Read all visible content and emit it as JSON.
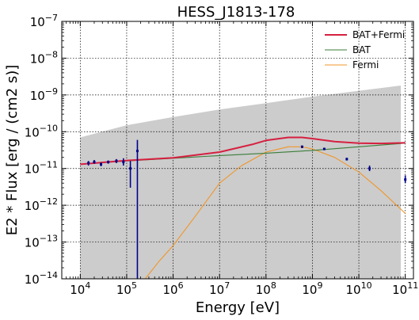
{
  "chart_data": {
    "type": "line",
    "title": "HESS_J1813-178",
    "xlabel": "Energy [eV]",
    "ylabel": "E2 * Flux [erg / (cm2 s)]",
    "xscale": "log",
    "yscale": "log",
    "xlim": [
      4000.0,
      150000000000.0
    ],
    "ylim": [
      1e-14,
      1e-07
    ],
    "grid": true,
    "legend_position": "top-right",
    "x_ticks": [
      {
        "base": "10",
        "exp": "4",
        "value": 10000.0
      },
      {
        "base": "10",
        "exp": "5",
        "value": 100000.0
      },
      {
        "base": "10",
        "exp": "6",
        "value": 1000000.0
      },
      {
        "base": "10",
        "exp": "7",
        "value": 10000000.0
      },
      {
        "base": "10",
        "exp": "8",
        "value": 100000000.0
      },
      {
        "base": "10",
        "exp": "9",
        "value": 1000000000.0
      },
      {
        "base": "10",
        "exp": "10",
        "value": 10000000000.0
      },
      {
        "base": "10",
        "exp": "11",
        "value": 100000000000.0
      }
    ],
    "y_ticks": [
      {
        "base": "10",
        "exp": "−14",
        "value": 1e-14
      },
      {
        "base": "10",
        "exp": "−13",
        "value": 1e-13
      },
      {
        "base": "10",
        "exp": "−12",
        "value": 1e-12
      },
      {
        "base": "10",
        "exp": "−11",
        "value": 1e-11
      },
      {
        "base": "10",
        "exp": "−10",
        "value": 1e-10
      },
      {
        "base": "10",
        "exp": "−9",
        "value": 1e-09
      },
      {
        "base": "10",
        "exp": "−8",
        "value": 1e-08
      },
      {
        "base": "10",
        "exp": "−7",
        "value": 1e-07
      }
    ],
    "band": {
      "color": "#cccccc",
      "x": [
        10000.0,
        100000.0,
        1000000.0,
        10000000.0,
        100000000.0,
        1000000000.0,
        10000000000.0,
        80000000000.0
      ],
      "upper": [
        7e-11,
        1.5e-10,
        2.5e-10,
        4e-10,
        6e-10,
        9e-10,
        1.3e-09,
        1.8e-09
      ],
      "lower": [
        1e-14,
        1e-14,
        1e-14,
        1e-14,
        1e-14,
        1e-14,
        1e-14,
        1e-14
      ]
    },
    "series": [
      {
        "name": "BAT+Fermi",
        "color": "#d62040",
        "x": [
          10000.0,
          100000.0,
          1000000.0,
          10000000.0,
          50000000.0,
          100000000.0,
          300000000.0,
          600000000.0,
          1000000000.0,
          3000000000.0,
          10000000000.0,
          30000000000.0,
          100000000000.0
        ],
        "y": [
          1.3e-11,
          1.65e-11,
          1.95e-11,
          2.8e-11,
          4.5e-11,
          5.8e-11,
          7e-11,
          7e-11,
          6.5e-11,
          5.4e-11,
          4.9e-11,
          4.8e-11,
          5e-11
        ]
      },
      {
        "name": "BAT",
        "color": "#3a7d3a",
        "x": [
          10000.0,
          100000.0,
          1000000.0,
          10000000.0,
          100000000.0,
          1000000000.0,
          10000000000.0,
          100000000000.0
        ],
        "y": [
          1.3e-11,
          1.6e-11,
          1.9e-11,
          2.25e-11,
          2.6e-11,
          3.1e-11,
          3.9e-11,
          4.9e-11
        ]
      },
      {
        "name": "Fermi",
        "color": "#f0962a",
        "x": [
          250000.0,
          500000.0,
          1000000.0,
          3000000.0,
          10000000.0,
          30000000.0,
          100000000.0,
          300000000.0,
          600000000.0,
          1000000000.0,
          3000000000.0,
          10000000000.0,
          30000000000.0,
          100000000000.0
        ],
        "y": [
          1e-14,
          3e-14,
          8e-14,
          5e-13,
          4e-12,
          1.2e-11,
          2.8e-11,
          3.9e-11,
          3.9e-11,
          3.4e-11,
          2e-11,
          8e-12,
          2.5e-12,
          6e-13
        ]
      }
    ],
    "data_points": {
      "color": "#00008b",
      "points": [
        {
          "x": 15000.0,
          "y": 1.4e-11,
          "ylo": 1.2e-11,
          "yhi": 1.6e-11
        },
        {
          "x": 20000.0,
          "y": 1.5e-11,
          "ylo": 1.35e-11,
          "yhi": 1.7e-11
        },
        {
          "x": 28000.0,
          "y": 1.3e-11,
          "ylo": 1.15e-11,
          "yhi": 1.45e-11
        },
        {
          "x": 40000.0,
          "y": 1.5e-11,
          "ylo": 1.35e-11,
          "yhi": 1.65e-11
        },
        {
          "x": 60000.0,
          "y": 1.6e-11,
          "ylo": 1.4e-11,
          "yhi": 1.8e-11
        },
        {
          "x": 85000.0,
          "y": 1.5e-11,
          "ylo": 1.2e-11,
          "yhi": 1.9e-11
        },
        {
          "x": 120000.0,
          "y": 1e-11,
          "ylo": 3e-12,
          "yhi": 1.6e-11
        },
        {
          "x": 170000.0,
          "y": 3e-11,
          "ylo": 1e-14,
          "yhi": 6e-11
        },
        {
          "x": 600000000.0,
          "y": 3.9e-11,
          "ylo": 3.6e-11,
          "yhi": 4.2e-11
        },
        {
          "x": 1800000000.0,
          "y": 3.4e-11,
          "ylo": 3.2e-11,
          "yhi": 3.6e-11
        },
        {
          "x": 5500000000.0,
          "y": 1.8e-11,
          "ylo": 1.65e-11,
          "yhi": 1.95e-11
        },
        {
          "x": 17000000000.0,
          "y": 1e-11,
          "ylo": 8.5e-12,
          "yhi": 1.2e-11
        },
        {
          "x": 100000000000.0,
          "y": 5e-12,
          "ylo": 4e-12,
          "yhi": 6.5e-12
        }
      ]
    }
  }
}
